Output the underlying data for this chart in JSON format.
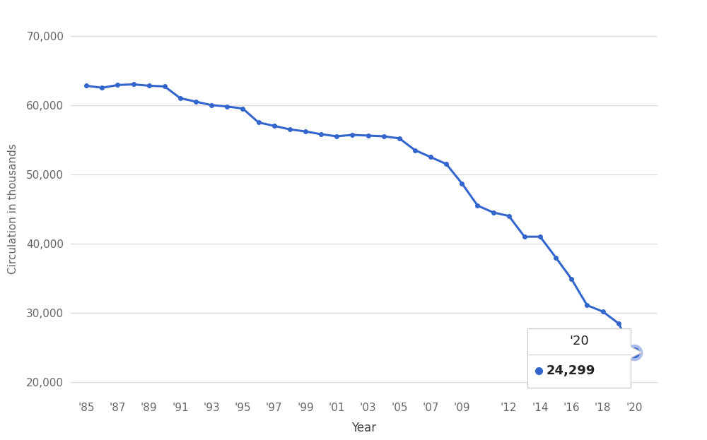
{
  "years": [
    1985,
    1986,
    1987,
    1988,
    1989,
    1990,
    1991,
    1992,
    1993,
    1994,
    1995,
    1996,
    1997,
    1998,
    1999,
    2000,
    2001,
    2002,
    2003,
    2004,
    2005,
    2006,
    2007,
    2008,
    2009,
    2010,
    2011,
    2012,
    2013,
    2014,
    2015,
    2016,
    2017,
    2018,
    2019,
    2020
  ],
  "values": [
    62800,
    62500,
    62900,
    63000,
    62800,
    62700,
    61000,
    60500,
    60000,
    59800,
    59500,
    57500,
    57000,
    56500,
    56200,
    55800,
    55500,
    55700,
    55600,
    55500,
    55200,
    53500,
    52500,
    51500,
    48700,
    45500,
    44500,
    44000,
    41000,
    41000,
    38000,
    34900,
    31100,
    30200,
    28500,
    24299
  ],
  "line_color": "#3366cc",
  "marker_color": "#3366cc",
  "background_color": "#ffffff",
  "grid_color": "#dddddd",
  "ylabel": "Circulation in thousands",
  "xlabel": "Year",
  "ylim": [
    18000,
    72000
  ],
  "yticks": [
    20000,
    30000,
    40000,
    50000,
    60000,
    70000
  ],
  "xtick_labels": [
    "'85",
    "'87",
    "'89",
    "'91",
    "'93",
    "'95",
    "'97",
    "'99",
    "'01",
    "'03",
    "'05",
    "'07",
    "'09",
    "'12",
    "'14",
    "'16",
    "'18",
    "'20"
  ],
  "xtick_years": [
    1985,
    1987,
    1989,
    1991,
    1993,
    1995,
    1997,
    1999,
    2001,
    2003,
    2005,
    2007,
    2009,
    2012,
    2014,
    2016,
    2018,
    2020
  ],
  "tooltip_year": "'20",
  "tooltip_value": "24,299",
  "tooltip_bg": "#ffffff",
  "tooltip_border": "#cccccc",
  "last_point_year": 2020,
  "last_point_value": 24299
}
